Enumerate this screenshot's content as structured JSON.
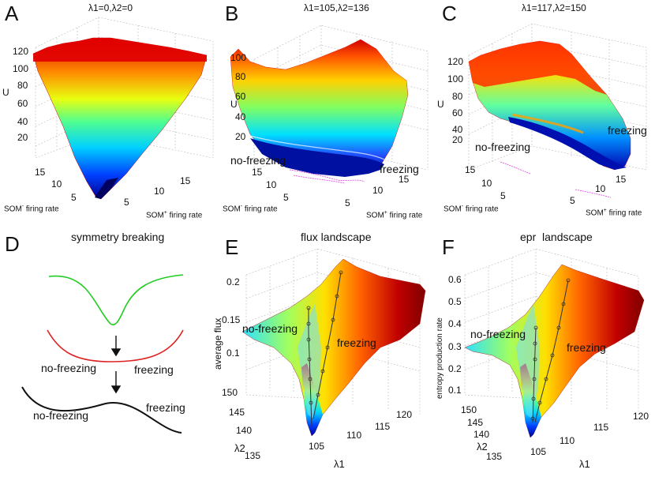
{
  "figure": {
    "panels": {
      "A": {
        "label": "A",
        "title": "λ1=0,λ2=0",
        "zlabel": "U",
        "zticks": [
          "120",
          "100",
          "80",
          "60",
          "40",
          "20"
        ],
        "xlabel_base": "SOM",
        "xlabel_sup": "-",
        "xlabel_rest": " firing rate",
        "ylabel_base": "SOM",
        "ylabel_sup": "+",
        "ylabel_rest": " firing rate",
        "xticks": [
          "15",
          "10",
          "5"
        ],
        "yticks": [
          "5",
          "10",
          "15"
        ]
      },
      "B": {
        "label": "B",
        "title": "λ1=105,λ2=136",
        "zlabel": "U",
        "zticks": [
          "100",
          "80",
          "60",
          "40",
          "20"
        ],
        "xlabel_base": "SOM",
        "xlabel_sup": "-",
        "xlabel_rest": " firing rate",
        "ylabel_base": "SOM",
        "ylabel_sup": "+",
        "ylabel_rest": " firing rate",
        "xticks": [
          "15",
          "10",
          "5"
        ],
        "yticks": [
          "5",
          "10",
          "15"
        ],
        "annotations": {
          "left": "no-freezing",
          "right": "freezing"
        }
      },
      "C": {
        "label": "C",
        "title": "λ1=117,λ2=150",
        "zlabel": "U",
        "zticks": [
          "120",
          "100",
          "80",
          "60",
          "40",
          "20"
        ],
        "xlabel_base": "SOM",
        "xlabel_sup": "-",
        "xlabel_rest": " firing rate",
        "ylabel_base": "SOM",
        "ylabel_sup": "+",
        "ylabel_rest": " firing rate",
        "xticks": [
          "15",
          "10",
          "5"
        ],
        "yticks": [
          "5",
          "10",
          "15"
        ],
        "annotations": {
          "left": "no-freezing",
          "right": "freezing"
        }
      },
      "D": {
        "label": "D",
        "title": "symmetry breaking",
        "annotations": {
          "mid_left": "no-freezing",
          "mid_right": "freezing",
          "bot_left": "no-freezing",
          "bot_right": "freezing"
        },
        "colors": {
          "top": "#22cc22",
          "mid": "#dd2222",
          "bot": "#111111"
        }
      },
      "E": {
        "label": "E",
        "title": "flux landscape",
        "zlabel": "average flux",
        "zticks": [
          "0.2",
          "0.15",
          "0.1"
        ],
        "lambda2_label": "λ2",
        "lambda1_label": "λ1",
        "lambda2_ticks": [
          "150",
          "145",
          "140",
          "135"
        ],
        "lambda1_ticks": [
          "105",
          "110",
          "115",
          "120"
        ],
        "annotations": {
          "left": "no-freezing",
          "right": "freezing"
        }
      },
      "F": {
        "label": "F",
        "title": "epr  landscape",
        "zlabel": "entropy production rate",
        "zticks": [
          "0.6",
          "0.5",
          "0.4",
          "0.3",
          "0.2",
          "0.1"
        ],
        "lambda2_label": "λ2",
        "lambda1_label": "λ1",
        "lambda2_ticks": [
          "150",
          "145",
          "140",
          "135"
        ],
        "lambda1_ticks": [
          "105",
          "110",
          "115",
          "120"
        ],
        "annotations": {
          "left": "no-freezing",
          "right": "freezing"
        }
      }
    }
  }
}
